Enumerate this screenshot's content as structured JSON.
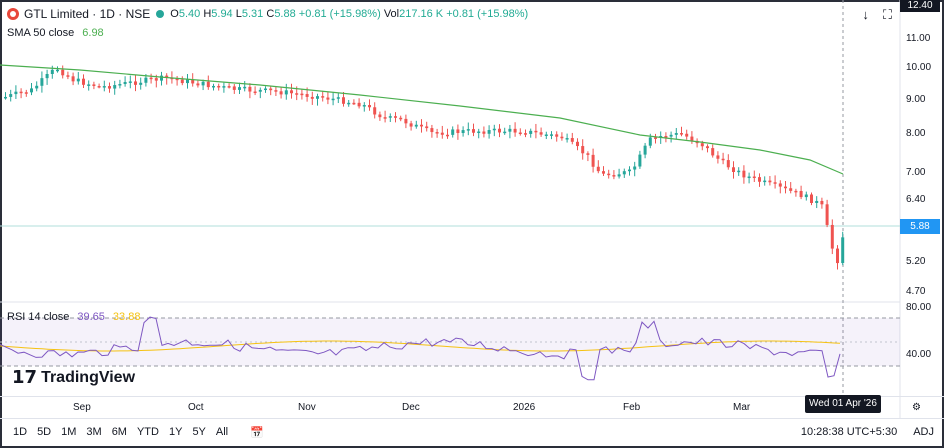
{
  "header": {
    "symbol": "GTL Limited · 1D · NSE",
    "open_label": "O",
    "open": "5.40",
    "high_label": "H",
    "high": "5.94",
    "low_label": "L",
    "low": "5.31",
    "close_label": "C",
    "close": "5.88",
    "change": "+0.81 (+15.98%)",
    "vol_label": "Vol",
    "vol": "217.16 K",
    "change2": "+0.81 (+15.98%)"
  },
  "sma": {
    "label": "SMA 50 close",
    "value": "6.98"
  },
  "rsi": {
    "label": "RSI 14 close",
    "value1": "39.65",
    "value2": "33.88"
  },
  "price_axis": [
    "12.40",
    "11.00",
    "10.00",
    "9.00",
    "8.00",
    "7.00",
    "6.40",
    "5.88",
    "5.20",
    "4.70"
  ],
  "rsi_axis": [
    "80.00",
    "40.00"
  ],
  "current_price": "5.88",
  "months": [
    "Sep",
    "Oct",
    "Nov",
    "Dec",
    "2026",
    "Feb",
    "Mar"
  ],
  "crosshair_date": "Wed 01 Apr '26",
  "ranges": [
    "1D",
    "5D",
    "1M",
    "3M",
    "6M",
    "YTD",
    "1Y",
    "5Y",
    "All"
  ],
  "clock": "10:28:38 UTC+5:30",
  "adj": "ADJ",
  "watermark": "TradingView",
  "colors": {
    "up": "#26a69a",
    "down": "#ef5350",
    "sma": "#4caf50",
    "rsi": "#7e57c2",
    "rsi_ma": "#f5c211",
    "accent": "#2196f3"
  },
  "icons": [
    "arrow-down-icon",
    "fullscreen-icon",
    "settings-icon",
    "calendar-range-icon"
  ]
}
